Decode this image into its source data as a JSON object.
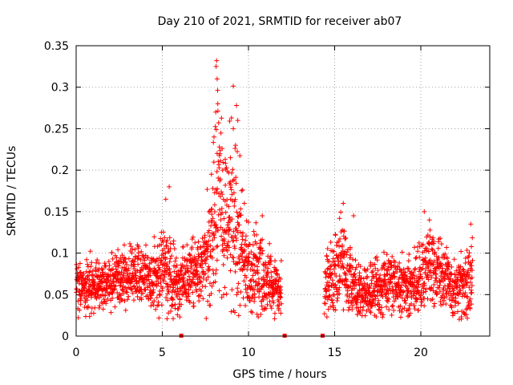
{
  "chart_data": {
    "type": "scatter",
    "title": "Day 210 of 2021, SRMTID for receiver ab07",
    "xlabel": "GPS time / hours",
    "ylabel": "SRMTID / TECUs",
    "xlim": [
      0,
      24
    ],
    "ylim": [
      0,
      0.35
    ],
    "xticks": [
      0,
      5,
      10,
      15,
      20
    ],
    "xtick_labels": [
      "0",
      "5",
      "10",
      "15",
      "20"
    ],
    "yticks": [
      0,
      0.05,
      0.1,
      0.15,
      0.2,
      0.25,
      0.3,
      0.35
    ],
    "ytick_labels": [
      "0",
      "0.05",
      "0.1",
      "0.15",
      "0.2",
      "0.25",
      "0.3",
      "0.35"
    ],
    "grid": true,
    "marker": "+",
    "color": "#ff0000",
    "series": [
      {
        "name": "SRMTID",
        "segments": [
          {
            "start": 0.0,
            "end": 11.9
          },
          {
            "start": 14.4,
            "end": 23.0
          }
        ],
        "profile": [
          [
            0.0,
            0.06,
            0.015
          ],
          [
            1.0,
            0.06,
            0.015
          ],
          [
            2.0,
            0.065,
            0.015
          ],
          [
            3.0,
            0.075,
            0.017
          ],
          [
            4.0,
            0.075,
            0.017
          ],
          [
            4.8,
            0.07,
            0.02
          ],
          [
            5.0,
            0.09,
            0.03
          ],
          [
            5.5,
            0.065,
            0.02
          ],
          [
            6.0,
            0.06,
            0.018
          ],
          [
            7.0,
            0.085,
            0.02
          ],
          [
            7.5,
            0.09,
            0.025
          ],
          [
            8.0,
            0.12,
            0.05
          ],
          [
            8.3,
            0.18,
            0.07
          ],
          [
            8.6,
            0.13,
            0.04
          ],
          [
            9.0,
            0.16,
            0.05
          ],
          [
            9.4,
            0.12,
            0.05
          ],
          [
            9.8,
            0.09,
            0.03
          ],
          [
            10.5,
            0.075,
            0.025
          ],
          [
            11.0,
            0.065,
            0.02
          ],
          [
            11.9,
            0.05,
            0.015
          ],
          [
            14.4,
            0.06,
            0.02
          ],
          [
            15.0,
            0.075,
            0.025
          ],
          [
            15.5,
            0.09,
            0.025
          ],
          [
            16.0,
            0.06,
            0.018
          ],
          [
            17.0,
            0.055,
            0.017
          ],
          [
            18.0,
            0.065,
            0.018
          ],
          [
            19.0,
            0.06,
            0.018
          ],
          [
            20.0,
            0.065,
            0.02
          ],
          [
            20.5,
            0.085,
            0.02
          ],
          [
            21.0,
            0.08,
            0.02
          ],
          [
            22.0,
            0.055,
            0.018
          ],
          [
            23.0,
            0.07,
            0.025
          ]
        ],
        "extremes": [
          [
            8.15,
            0.332
          ],
          [
            8.12,
            0.325
          ],
          [
            8.18,
            0.31
          ],
          [
            8.22,
            0.28
          ],
          [
            8.1,
            0.27
          ],
          [
            9.3,
            0.278
          ],
          [
            9.38,
            0.26
          ],
          [
            9.12,
            0.25
          ],
          [
            8.0,
            0.24
          ],
          [
            9.25,
            0.23
          ],
          [
            8.95,
            0.215
          ],
          [
            8.5,
            0.2
          ],
          [
            5.2,
            0.165
          ],
          [
            5.4,
            0.18
          ],
          [
            15.5,
            0.16
          ],
          [
            16.1,
            0.145
          ],
          [
            10.8,
            0.145
          ],
          [
            20.2,
            0.15
          ],
          [
            22.9,
            0.135
          ],
          [
            20.5,
            0.14
          ]
        ],
        "points_per_hour": 120
      },
      {
        "name": "gap markers",
        "x": [
          6.1,
          12.1,
          14.3
        ],
        "y": [
          0,
          0,
          0
        ]
      }
    ]
  }
}
